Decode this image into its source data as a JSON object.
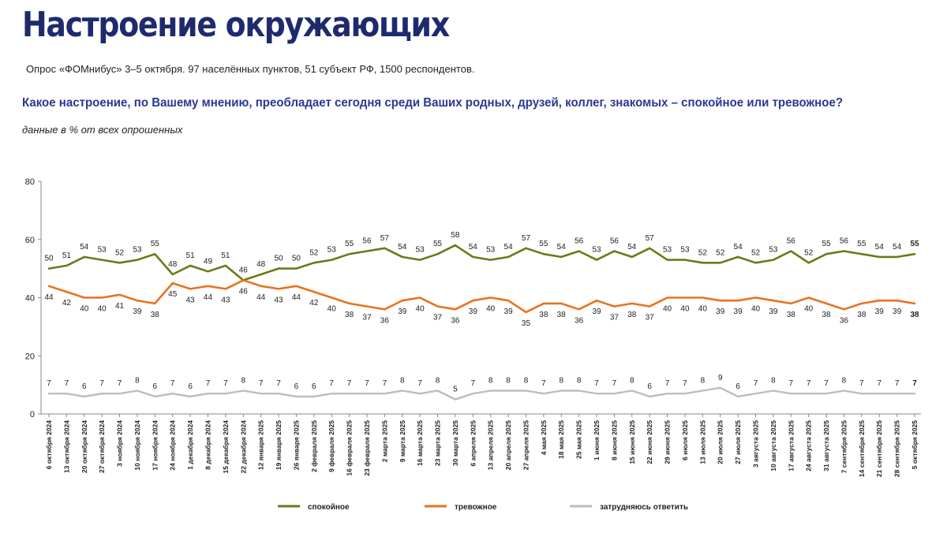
{
  "header": {
    "title": "Настроение окружающих",
    "subtitle": "Опрос «ФОМнибус» 3–5 октября. 97 населённых пунктов, 51 субъект РФ, 1500 респондентов.",
    "question": "Какое настроение, по Вашему мнению, преобладает сегодня среди Ваших родных, друзей, коллег, знакомых – спокойное или тревожное?",
    "note": "данные в % от всех опрошенных"
  },
  "colors": {
    "calm": "#6b7a1a",
    "anxious": "#e8731e",
    "undecided": "#bdbdbd",
    "title": "#1f2a6e",
    "question": "#2a3990"
  },
  "chart_data": {
    "type": "line",
    "title": "Настроение окружающих",
    "xlabel": "",
    "ylabel": "",
    "ylim": [
      0,
      80
    ],
    "yticks": [
      0,
      20,
      40,
      60,
      80
    ],
    "grid": false,
    "legend": "bottom",
    "categories": [
      "6 октября 2024",
      "13 октября 2024",
      "20 октября 2024",
      "27 октября 2024",
      "3 ноября 2024",
      "10 ноября 2024",
      "17 ноября 2024",
      "24 ноября 2024",
      "1 декабря 2024",
      "8 декабря 2024",
      "15 декабря 2024",
      "22 декабря 2024",
      "12 января 2025",
      "19 января 2025",
      "26 января 2025",
      "2 февраля 2025",
      "9 февраля 2025",
      "16 февраля 2025",
      "23 февраля 2025",
      "2 марта 2025",
      "9 марта 2025",
      "16 марта 2025",
      "23 марта 2025",
      "30 марта 2025",
      "6 апреля 2025",
      "13 апреля 2025",
      "20 апреля 2025",
      "27 апреля 2025",
      "4 мая 2025",
      "18 мая 2025",
      "25 мая 2025",
      "1 июня 2025",
      "8 июня 2025",
      "15 июня 2025",
      "22 июня 2025",
      "29 июня 2025",
      "6 июля 2025",
      "13 июля 2025",
      "20 июля 2025",
      "27 июля 2025",
      "3 августа 2025",
      "10 августа 2025",
      "17 августа 2025",
      "24 августа 2025",
      "31 августа 2025",
      "7 сентября 2025",
      "14 сентября 2025",
      "21 сентября 2025",
      "28 сентября 2025",
      "5 октября 2025"
    ],
    "series": [
      {
        "name": "спокойное",
        "color": "#6b7a1a",
        "values": [
          50,
          51,
          54,
          53,
          52,
          53,
          55,
          48,
          51,
          49,
          51,
          46,
          48,
          50,
          50,
          52,
          53,
          55,
          56,
          57,
          54,
          53,
          55,
          58,
          54,
          53,
          54,
          57,
          55,
          54,
          56,
          53,
          56,
          54,
          57,
          53,
          53,
          52,
          52,
          54,
          52,
          53,
          56,
          52,
          55,
          56,
          55,
          54,
          54,
          55
        ]
      },
      {
        "name": "тревожное",
        "color": "#e8731e",
        "values": [
          44,
          42,
          40,
          40,
          41,
          39,
          38,
          45,
          43,
          44,
          43,
          46,
          44,
          43,
          44,
          42,
          40,
          38,
          37,
          36,
          39,
          40,
          37,
          36,
          39,
          40,
          39,
          35,
          38,
          38,
          36,
          39,
          37,
          38,
          37,
          40,
          40,
          40,
          39,
          39,
          40,
          39,
          38,
          40,
          38,
          36,
          38,
          39,
          39,
          38
        ]
      },
      {
        "name": "затрудняюсь ответить",
        "color": "#bdbdbd",
        "values": [
          7,
          7,
          6,
          7,
          7,
          8,
          6,
          7,
          6,
          7,
          7,
          8,
          7,
          7,
          6,
          6,
          7,
          7,
          7,
          7,
          8,
          7,
          8,
          5,
          7,
          8,
          8,
          8,
          7,
          8,
          8,
          7,
          7,
          8,
          6,
          7,
          7,
          8,
          9,
          6,
          7,
          8,
          7,
          7,
          7,
          8,
          7,
          7,
          7,
          7
        ]
      }
    ]
  }
}
